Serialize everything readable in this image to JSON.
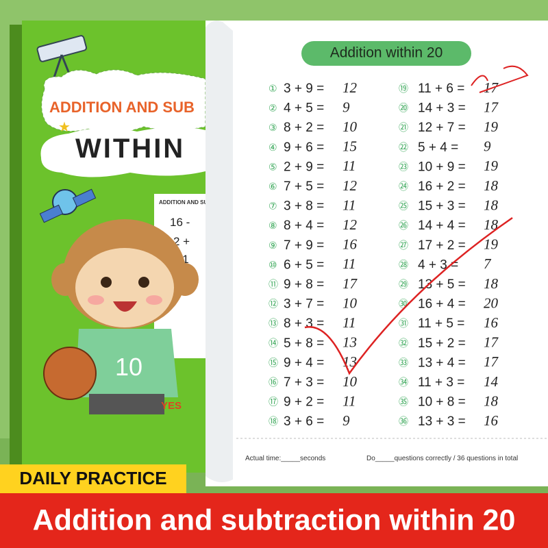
{
  "cover": {
    "title_line1": "ADDITION AND SUB",
    "title_line2": "WITHIN",
    "mini_sheet_title": "ADDITION AND SUB",
    "mini_lines": [
      "16 -",
      "2 +",
      "11"
    ],
    "shirt_number": "10",
    "tag": "YES"
  },
  "page": {
    "title": "Addition within 20",
    "left": [
      {
        "number": "①",
        "equation": "3 + 9 =",
        "answer": "12"
      },
      {
        "number": "②",
        "equation": "4 + 5 =",
        "answer": "9"
      },
      {
        "number": "③",
        "equation": "8 + 2 =",
        "answer": "10"
      },
      {
        "number": "④",
        "equation": "9 + 6 =",
        "answer": "15"
      },
      {
        "number": "⑤",
        "equation": "2 + 9 =",
        "answer": "11"
      },
      {
        "number": "⑥",
        "equation": "7 + 5 =",
        "answer": "12"
      },
      {
        "number": "⑦",
        "equation": "3 + 8 =",
        "answer": "11"
      },
      {
        "number": "⑧",
        "equation": "8 + 4 =",
        "answer": "12"
      },
      {
        "number": "⑨",
        "equation": "7 + 9 =",
        "answer": "16"
      },
      {
        "number": "⑩",
        "equation": "6 + 5 =",
        "answer": "11"
      },
      {
        "number": "⑪",
        "equation": "9 + 8 =",
        "answer": "17"
      },
      {
        "number": "⑫",
        "equation": "3 + 7 =",
        "answer": "10"
      },
      {
        "number": "⑬",
        "equation": "8 + 3 =",
        "answer": "11"
      },
      {
        "number": "⑭",
        "equation": "5 + 8 =",
        "answer": "13"
      },
      {
        "number": "⑮",
        "equation": "9 + 4 =",
        "answer": "13"
      },
      {
        "number": "⑯",
        "equation": "7 + 3 =",
        "answer": "10"
      },
      {
        "number": "⑰",
        "equation": "9 + 2 =",
        "answer": "11"
      },
      {
        "number": "⑱",
        "equation": "3 + 6 =",
        "answer": "9"
      }
    ],
    "right": [
      {
        "number": "⑲",
        "equation": "11 + 6 =",
        "answer": "17"
      },
      {
        "number": "⑳",
        "equation": "14 + 3 =",
        "answer": "17"
      },
      {
        "number": "㉑",
        "equation": "12 + 7 =",
        "answer": "19"
      },
      {
        "number": "㉒",
        "equation": "5 + 4 =",
        "answer": "9"
      },
      {
        "number": "㉓",
        "equation": "10 + 9 =",
        "answer": "19"
      },
      {
        "number": "㉔",
        "equation": "16 + 2 =",
        "answer": "18"
      },
      {
        "number": "㉕",
        "equation": "15 + 3 =",
        "answer": "18"
      },
      {
        "number": "㉖",
        "equation": "14 + 4 =",
        "answer": "18"
      },
      {
        "number": "㉗",
        "equation": "17 + 2 =",
        "answer": "19"
      },
      {
        "number": "㉘",
        "equation": "4 + 3 =",
        "answer": "7"
      },
      {
        "number": "㉙",
        "equation": "13 + 5 =",
        "answer": "18"
      },
      {
        "number": "㉚",
        "equation": "16 + 4 =",
        "answer": "20"
      },
      {
        "number": "㉛",
        "equation": "11 + 5 =",
        "answer": "16"
      },
      {
        "number": "㉜",
        "equation": "15 + 2 =",
        "answer": "17"
      },
      {
        "number": "㉝",
        "equation": "13 + 4 =",
        "answer": "17"
      },
      {
        "number": "㉞",
        "equation": "11 + 3 =",
        "answer": "14"
      },
      {
        "number": "㉟",
        "equation": "10 + 8 =",
        "answer": "18"
      },
      {
        "number": "㊱",
        "equation": "13 + 3 =",
        "answer": "16"
      }
    ],
    "footer_left": "Actual time:_____seconds",
    "footer_right": "Do_____questions correctly / 36 questions in total"
  },
  "banner": {
    "tag": "DAILY PRACTICE",
    "headline": "Addition and subtraction within 20"
  }
}
